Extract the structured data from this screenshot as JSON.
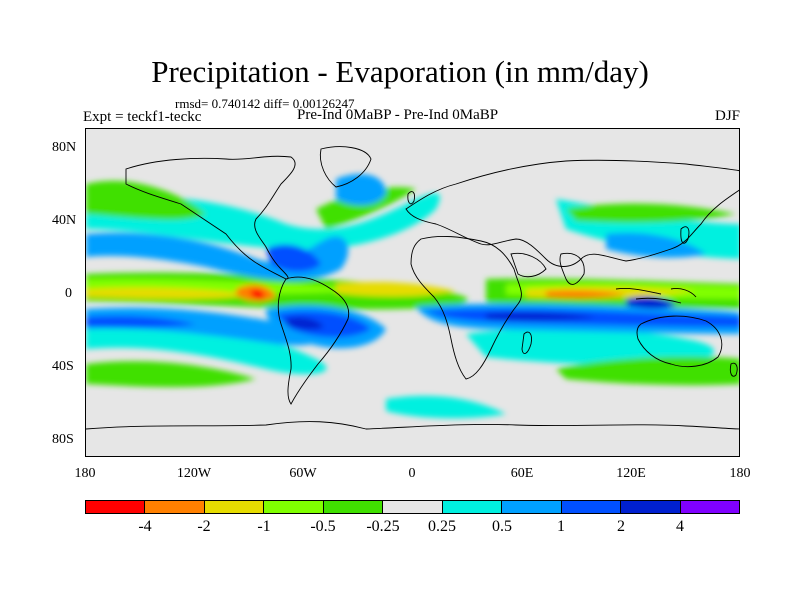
{
  "header": {
    "title": "Precipitation - Evaporation (in mm/day)",
    "stats": "rmsd= 0.740142 diff= 0.00126247",
    "experiment": "Expt = teckf1-teckc",
    "comparison": "Pre-Ind 0MaBP - Pre-Ind 0MaBP",
    "season": "DJF"
  },
  "map": {
    "lat_labels": [
      "80N",
      "40N",
      "0",
      "40S",
      "80S"
    ],
    "lon_labels": [
      "180",
      "120W",
      "60W",
      "0",
      "60E",
      "120E",
      "180"
    ],
    "land_color": "#e6e6e6",
    "coastline_color": "#000000"
  },
  "colorbar": {
    "colors": [
      "#ff0000",
      "#ff8000",
      "#e6dc00",
      "#80ff00",
      "#40e000",
      "#e6e6e6",
      "#00f0e0",
      "#00a0ff",
      "#0050ff",
      "#0020d0",
      "#8000ff"
    ],
    "labels": [
      "-4",
      "-2",
      "-1",
      "-0.5",
      "-0.25",
      "0.25",
      "0.5",
      "1",
      "2",
      "4"
    ]
  }
}
